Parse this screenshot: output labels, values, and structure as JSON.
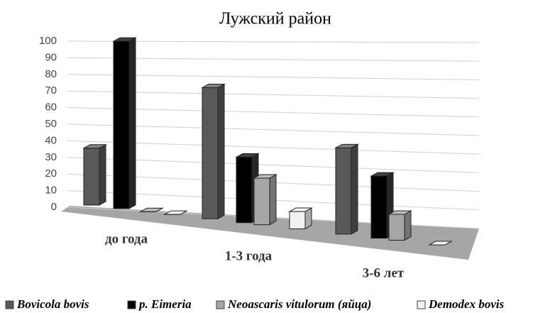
{
  "chart_data": {
    "type": "bar",
    "title": "Лужский район",
    "categories": [
      "до года",
      "1-3 года",
      "3-6 лет"
    ],
    "series": [
      {
        "name": "Bovicola bovis",
        "color": "#595959",
        "values": [
          33,
          76,
          50
        ]
      },
      {
        "name": "р. Eimeria",
        "color": "#000000",
        "values": [
          97,
          38,
          36
        ]
      },
      {
        "name": "Neoascaris vitulorum (яйца)",
        "color": "#a6a6a6",
        "values": [
          0,
          27,
          15
        ]
      },
      {
        "name": "Demodex bovis",
        "color": "#f2f2f2",
        "values": [
          0,
          10,
          0
        ]
      }
    ],
    "ylim": [
      0,
      100
    ],
    "yticks": [
      0,
      10,
      20,
      30,
      40,
      50,
      60,
      70,
      80,
      90,
      100
    ],
    "grid": true
  }
}
